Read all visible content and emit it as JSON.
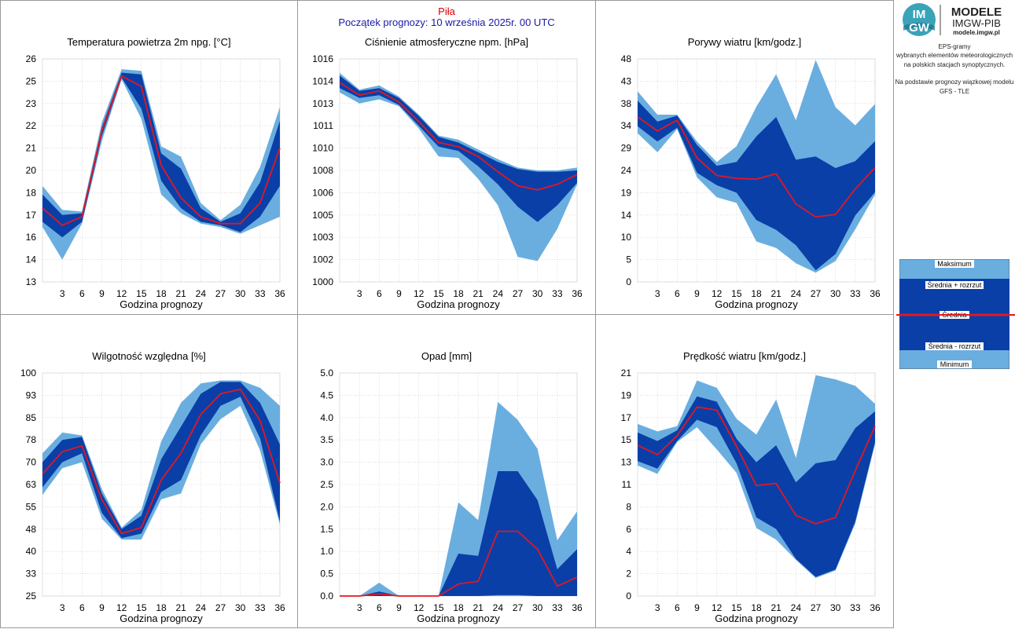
{
  "header": {
    "station": "Piła",
    "forecast_start": "Początek prognozy: 10 września 2025r. 00 UTC"
  },
  "logo": {
    "mark_top": "IM",
    "mark_bottom": "GW",
    "title": "MODELE",
    "subtitle": "IMGW-PIB",
    "url": "modele.imgw.pl"
  },
  "info": {
    "line1": "EPS-gramy",
    "line2": "wybranych elementów meteorologicznych",
    "line3": "na polskich stacjach  synoptycznych.",
    "line4": "Na podstawie prognozy wiązkowej modelu",
    "line5": "GFS - TLE"
  },
  "legend": {
    "max": "Maksimum",
    "mean_plus": "Średnia + rozrzut",
    "mean": "Średnia",
    "mean_minus": "Średnia - rozrzut",
    "min": "Minimum"
  },
  "colors": {
    "outer_band": "#6aaee0",
    "inner_band": "#0a3fa8",
    "mean_line": "#e3171f",
    "station_title": "#dd0000",
    "start_text": "#1a1aa8"
  },
  "chart_data": [
    {
      "type": "area",
      "title": "Temperatura powietrza 2m npg. [°C]",
      "xlabel": "Godzina prognozy",
      "x": [
        0,
        3,
        6,
        9,
        12,
        15,
        18,
        21,
        24,
        27,
        30,
        33,
        36
      ],
      "xlim": [
        0,
        36
      ],
      "xticks": [
        "3",
        "6",
        "9",
        "12",
        "15",
        "18",
        "21",
        "24",
        "27",
        "30",
        "33",
        "36"
      ],
      "ylim": [
        13,
        26
      ],
      "yticks": [
        "13",
        "14",
        "16",
        "17",
        "18",
        "20",
        "21",
        "22",
        "23",
        "25",
        "26"
      ],
      "max": [
        18.6,
        17.2,
        17.1,
        22.3,
        25.4,
        25.3,
        20.9,
        20.3,
        17.6,
        16.6,
        17.5,
        19.7,
        23.2
      ],
      "mean_plus": [
        18.1,
        16.9,
        17.0,
        22.0,
        25.2,
        25.1,
        20.5,
        19.6,
        17.3,
        16.5,
        17.0,
        18.8,
        22.4
      ],
      "mean": [
        17.3,
        16.3,
        16.8,
        21.8,
        25.0,
        24.4,
        19.8,
        17.9,
        16.8,
        16.4,
        16.4,
        17.6,
        20.8
      ],
      "mean_minus": [
        16.5,
        15.6,
        16.5,
        21.5,
        24.9,
        23.1,
        18.9,
        17.3,
        16.5,
        16.3,
        15.9,
        16.8,
        18.6
      ],
      "min": [
        16.2,
        14.3,
        16.4,
        21.2,
        24.8,
        22.5,
        18.1,
        17.0,
        16.4,
        16.2,
        15.8,
        16.3,
        16.8
      ]
    },
    {
      "type": "area",
      "title": "Ciśnienie atmosferyczne npm. [hPa]",
      "xlabel": "Godzina prognozy",
      "x": [
        0,
        3,
        6,
        9,
        12,
        15,
        18,
        21,
        24,
        27,
        30,
        33,
        36
      ],
      "xlim": [
        0,
        36
      ],
      "xticks": [
        "3",
        "6",
        "9",
        "12",
        "15",
        "18",
        "21",
        "24",
        "27",
        "30",
        "33",
        "36"
      ],
      "ylim": [
        1000,
        1016
      ],
      "yticks": [
        "1000",
        "1002",
        "1003",
        "1005",
        "1006",
        "1008",
        "1010",
        "1011",
        "1013",
        "1014",
        "1016"
      ],
      "max": [
        1015.0,
        1013.8,
        1014.1,
        1013.3,
        1012.0,
        1010.5,
        1010.2,
        1009.5,
        1008.8,
        1008.2,
        1008.0,
        1008.0,
        1008.2
      ],
      "mean_plus": [
        1014.8,
        1013.7,
        1013.9,
        1013.2,
        1011.9,
        1010.4,
        1010.0,
        1009.3,
        1008.6,
        1008.1,
        1007.9,
        1007.9,
        1008.0
      ],
      "mean": [
        1014.3,
        1013.4,
        1013.7,
        1012.9,
        1011.5,
        1010.0,
        1009.7,
        1009.0,
        1007.9,
        1006.9,
        1006.6,
        1007.0,
        1007.7
      ],
      "mean_minus": [
        1013.9,
        1013.2,
        1013.4,
        1012.7,
        1011.2,
        1009.7,
        1009.4,
        1008.3,
        1007.0,
        1005.4,
        1004.3,
        1005.5,
        1007.1
      ],
      "min": [
        1013.6,
        1012.8,
        1013.1,
        1012.6,
        1011.0,
        1009.0,
        1008.9,
        1007.4,
        1005.5,
        1001.8,
        1001.5,
        1003.8,
        1007.0
      ]
    },
    {
      "type": "area",
      "title": "Porywy wiatru [km/godz.]",
      "xlabel": "Godzina prognozy",
      "x": [
        0,
        3,
        6,
        9,
        12,
        15,
        18,
        21,
        24,
        27,
        30,
        33,
        36
      ],
      "xlim": [
        0,
        36
      ],
      "xticks": [
        "3",
        "6",
        "9",
        "12",
        "15",
        "18",
        "21",
        "24",
        "27",
        "30",
        "33",
        "36"
      ],
      "ylim": [
        0,
        48
      ],
      "yticks": [
        "0",
        "5",
        "10",
        "14",
        "19",
        "24",
        "29",
        "34",
        "38",
        "43",
        "48"
      ],
      "max": [
        41,
        36,
        36,
        30.2,
        25.8,
        29.2,
        37.7,
        44.7,
        34.8,
        47.8,
        37.6,
        33.7,
        38.3
      ],
      "mean_plus": [
        39,
        34.5,
        35.8,
        29.5,
        25.0,
        25.8,
        31.3,
        35.5,
        26.3,
        27.0,
        24.5,
        26.0,
        30.3
      ],
      "mean": [
        35.5,
        32.5,
        34.8,
        26.7,
        22.9,
        22.3,
        22.1,
        23.3,
        16.8,
        14.0,
        14.5,
        20.0,
        24.6
      ],
      "mean_minus": [
        33.5,
        30.2,
        33.2,
        23.5,
        20.8,
        19.2,
        13.3,
        11.2,
        7.9,
        2.5,
        6.0,
        14.3,
        19.3
      ],
      "min": [
        32.0,
        27.9,
        32.9,
        22.5,
        18.2,
        17.0,
        8.7,
        7.3,
        4.0,
        2.0,
        4.5,
        11.3,
        18.8
      ]
    },
    {
      "type": "area",
      "title": "Wilgotność względna [%]",
      "xlabel": "Godzina prognozy",
      "x": [
        0,
        3,
        6,
        9,
        12,
        15,
        18,
        21,
        24,
        27,
        30,
        33,
        36
      ],
      "xlim": [
        0,
        36
      ],
      "xticks": [
        "3",
        "6",
        "9",
        "12",
        "15",
        "18",
        "21",
        "24",
        "27",
        "30",
        "33",
        "36"
      ],
      "ylim": [
        25,
        100
      ],
      "yticks": [
        "25",
        "33",
        "40",
        "48",
        "55",
        "63",
        "70",
        "78",
        "85",
        "93",
        "100"
      ],
      "max": [
        73,
        80,
        79,
        61,
        48,
        54,
        77,
        90,
        96.5,
        97.5,
        97.5,
        95,
        89
      ],
      "mean_plus": [
        70,
        77.5,
        78.5,
        59.5,
        47.5,
        52,
        71,
        82,
        93,
        97,
        97,
        90,
        76
      ],
      "mean": [
        66,
        73.5,
        75.5,
        57.5,
        46,
        48,
        64,
        73,
        86,
        93,
        94.5,
        84,
        63
      ],
      "mean_minus": [
        61.5,
        70,
        73,
        53,
        44.5,
        46,
        60,
        64,
        79,
        89,
        92,
        78,
        50
      ],
      "min": [
        59,
        68,
        70,
        51,
        44,
        44,
        57.5,
        59.5,
        76,
        84.5,
        89,
        74,
        49
      ]
    },
    {
      "type": "area",
      "title": "Opad [mm]",
      "xlabel": "Godzina prognozy",
      "x": [
        0,
        3,
        6,
        9,
        12,
        15,
        18,
        21,
        24,
        27,
        30,
        33,
        36
      ],
      "xlim": [
        0,
        36
      ],
      "xticks": [
        "3",
        "6",
        "9",
        "12",
        "15",
        "18",
        "21",
        "24",
        "27",
        "30",
        "33",
        "36"
      ],
      "ylim": [
        0,
        5
      ],
      "yticks": [
        "0.0",
        "0.5",
        "1.0",
        "1.5",
        "2.0",
        "2.5",
        "3.0",
        "3.5",
        "4.0",
        "4.5",
        "5.0"
      ],
      "max": [
        0,
        0,
        0.3,
        0,
        0,
        0,
        2.1,
        1.7,
        4.35,
        3.95,
        3.3,
        1.25,
        1.9
      ],
      "mean_plus": [
        0,
        0,
        0.1,
        0,
        0,
        0,
        0.95,
        0.9,
        2.8,
        2.8,
        2.15,
        0.6,
        1.05
      ],
      "mean": [
        0,
        0,
        0.05,
        0,
        0,
        0,
        0.27,
        0.33,
        1.45,
        1.45,
        1.05,
        0.22,
        0.42
      ],
      "mean_minus": [
        0,
        0,
        0,
        0,
        0,
        0,
        0,
        0,
        0.02,
        0.02,
        0,
        0,
        0
      ],
      "min": [
        0,
        0,
        0,
        0,
        0,
        0,
        0,
        0,
        0,
        0,
        0,
        0,
        0
      ]
    },
    {
      "type": "area",
      "title": "Prędkość wiatru [km/godz.]",
      "xlabel": "Godzina prognozy",
      "x": [
        0,
        3,
        6,
        9,
        12,
        15,
        18,
        21,
        24,
        27,
        30,
        33,
        36
      ],
      "xlim": [
        0,
        36
      ],
      "xticks": [
        "3",
        "6",
        "9",
        "12",
        "15",
        "18",
        "21",
        "24",
        "27",
        "30",
        "33",
        "36"
      ],
      "ylim": [
        0,
        21
      ],
      "yticks": [
        "0",
        "2",
        "4",
        "6",
        "8",
        "11",
        "13",
        "15",
        "17",
        "19",
        "21"
      ],
      "max": [
        16.2,
        15.5,
        16.0,
        20.3,
        19.6,
        16.7,
        15.2,
        18.5,
        13.0,
        20.8,
        20.4,
        19.8,
        18.1
      ],
      "mean_plus": [
        15.4,
        14.6,
        15.6,
        18.8,
        18.3,
        14.8,
        12.6,
        14.2,
        10.7,
        12.5,
        12.8,
        15.8,
        17.4
      ],
      "mean": [
        14.2,
        13.3,
        15.1,
        17.8,
        17.5,
        14.1,
        10.4,
        10.6,
        7.6,
        6.8,
        7.4,
        11.8,
        16.0
      ],
      "mean_minus": [
        12.7,
        12.0,
        14.6,
        16.6,
        15.9,
        12.5,
        7.4,
        6.3,
        3.5,
        1.8,
        2.5,
        7.0,
        14.5
      ],
      "min": [
        12.3,
        11.5,
        14.5,
        15.9,
        13.8,
        11.6,
        6.4,
        5.3,
        3.4,
        1.7,
        2.4,
        6.8,
        14.3
      ]
    }
  ]
}
